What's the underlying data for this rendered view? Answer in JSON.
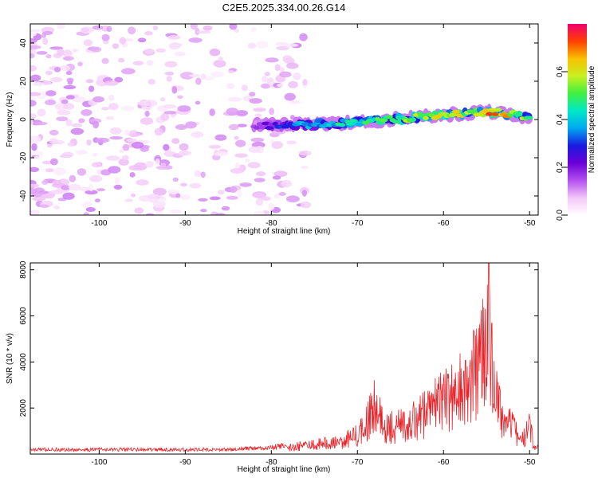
{
  "title": "C2E5.2025.334.00.26.G14",
  "colors": {
    "snr_line": "#e8242a",
    "axis": "#000000",
    "colormap": [
      "#ffffff",
      "#f3c6f8",
      "#b450f0",
      "#6a00d8",
      "#1a1ae0",
      "#00a8f0",
      "#00e8c8",
      "#40f040",
      "#c8f020",
      "#f8c000",
      "#ff4000",
      "#f00070"
    ]
  },
  "chart_data": [
    {
      "id": "spectrogram",
      "type": "heatmap",
      "title": "C2E5.2025.334.00.26.G14",
      "xlabel": "Height of straight line (km)",
      "ylabel": "Frequency (Hz)",
      "xlim": [
        -108,
        -49
      ],
      "ylim": [
        -50,
        50
      ],
      "xticks": [
        -100,
        -90,
        -80,
        -70,
        -60,
        -50
      ],
      "xtick_labels": [
        "-100",
        "-90",
        "-80",
        "-70",
        "-60",
        "-50"
      ],
      "yticks": [
        -40,
        -20,
        0,
        20,
        40
      ],
      "ytick_labels": [
        "-40",
        "-20",
        "0",
        "20",
        "40"
      ],
      "colorbar": {
        "label": "Normalized spectral amplitude",
        "range": [
          0,
          0.8
        ],
        "ticks": [
          0.0,
          0.2,
          0.4,
          0.6
        ],
        "tick_labels": [
          "0.0",
          "0.2",
          "0.4",
          "0.6"
        ]
      },
      "ridge": {
        "heights": [
          -82,
          -78,
          -74,
          -70,
          -66,
          -62,
          -58,
          -54,
          -50
        ],
        "frequencies": [
          -3,
          -3,
          -2.5,
          -1.5,
          0,
          1.5,
          3,
          4,
          1
        ],
        "peak_amplitudes": [
          0.15,
          0.35,
          0.45,
          0.5,
          0.55,
          0.6,
          0.65,
          0.75,
          0.55
        ]
      },
      "noise_region": {
        "height_range": [
          -108,
          -76
        ],
        "amplitude_range": [
          0.02,
          0.12
        ]
      }
    },
    {
      "id": "snr",
      "type": "line",
      "xlabel": "Height of straight line (km)",
      "ylabel": "SNR (10 * v/v)",
      "xlim": [
        -108,
        -49
      ],
      "ylim": [
        0,
        8300
      ],
      "xticks": [
        -100,
        -90,
        -80,
        -70,
        -60,
        -50
      ],
      "xtick_labels": [
        "-100",
        "-90",
        "-80",
        "-70",
        "-60",
        "-50"
      ],
      "yticks": [
        2000,
        4000,
        6000,
        8000
      ],
      "ytick_labels": [
        "2000",
        "4000",
        "6000",
        "8000"
      ],
      "envelope": {
        "x": [
          -108,
          -85,
          -80,
          -76,
          -72,
          -70,
          -68.5,
          -67.8,
          -67,
          -64,
          -62,
          -60,
          -58,
          -56,
          -55.2,
          -54.7,
          -54.2,
          -53,
          -52,
          -51,
          -50,
          -49.5
        ],
        "y": [
          200,
          200,
          280,
          550,
          800,
          1200,
          2500,
          3300,
          1600,
          2000,
          2600,
          3400,
          4200,
          5200,
          6600,
          8200,
          4000,
          2200,
          1800,
          700,
          2100,
          400
        ]
      }
    }
  ]
}
